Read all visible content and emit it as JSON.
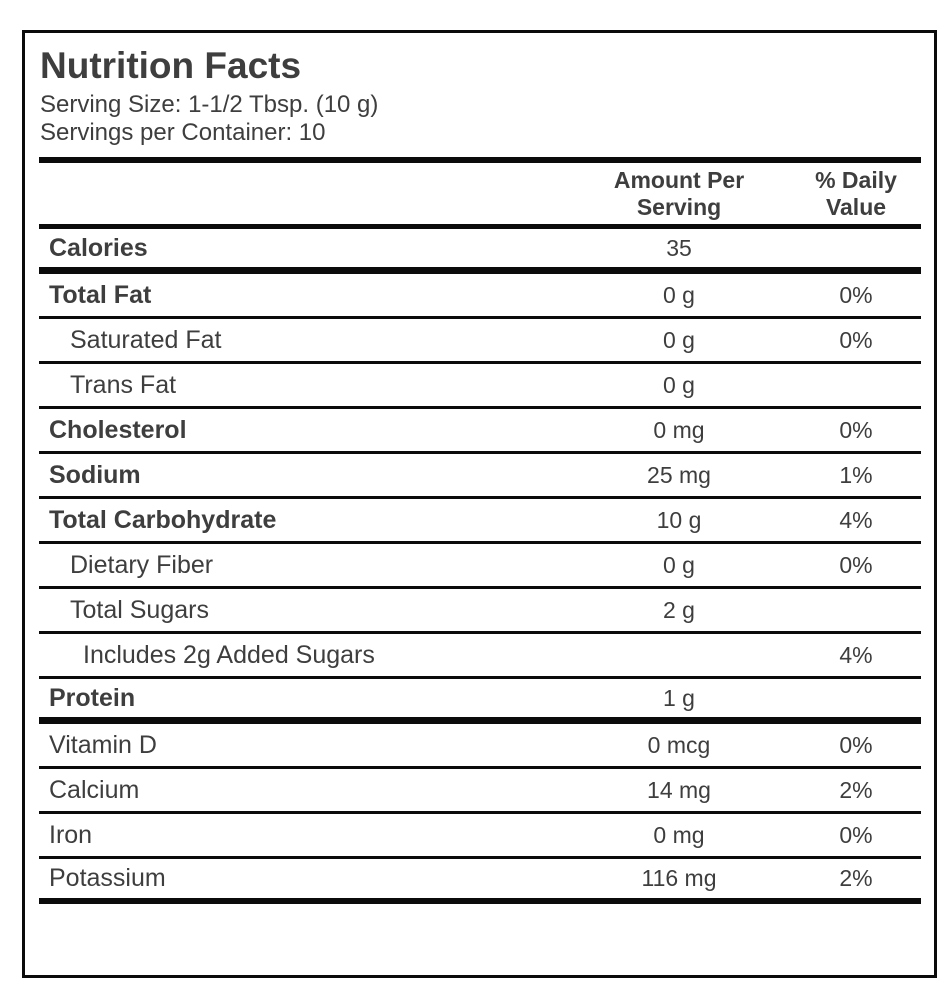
{
  "label": {
    "title": "Nutrition Facts",
    "serving_size": "Serving Size: 1-1/2 Tbsp. (10 g)",
    "servings_per_container": "Servings per Container: 10"
  },
  "table": {
    "amount_header": "Amount Per\nServing",
    "daily_value_header": "% Daily\nValue",
    "rows": [
      {
        "label": "Calories",
        "amount": "35",
        "dv": "",
        "bold": true,
        "indent": 0,
        "sep": "thick"
      },
      {
        "label": "Total Fat",
        "amount": "0 g",
        "dv": "0%",
        "bold": true,
        "indent": 0,
        "sep": "thin"
      },
      {
        "label": "Saturated Fat",
        "amount": "0 g",
        "dv": "0%",
        "bold": false,
        "indent": 1,
        "sep": "thin"
      },
      {
        "label": "Trans Fat",
        "amount": "0 g",
        "dv": "",
        "bold": false,
        "indent": 1,
        "sep": "thin"
      },
      {
        "label": "Cholesterol",
        "amount": "0 mg",
        "dv": "0%",
        "bold": true,
        "indent": 0,
        "sep": "thin"
      },
      {
        "label": "Sodium",
        "amount": "25 mg",
        "dv": "1%",
        "bold": true,
        "indent": 0,
        "sep": "thin"
      },
      {
        "label": "Total Carbohydrate",
        "amount": "10 g",
        "dv": "4%",
        "bold": true,
        "indent": 0,
        "sep": "thin"
      },
      {
        "label": "Dietary Fiber",
        "amount": "0 g",
        "dv": "0%",
        "bold": false,
        "indent": 1,
        "sep": "thin"
      },
      {
        "label": "Total Sugars",
        "amount": "2 g",
        "dv": "",
        "bold": false,
        "indent": 1,
        "sep": "thin"
      },
      {
        "label": "Includes 2g Added Sugars",
        "amount": "",
        "dv": "4%",
        "bold": false,
        "indent": 2,
        "sep": "thin"
      },
      {
        "label": "Protein",
        "amount": "1 g",
        "dv": "",
        "bold": true,
        "indent": 0,
        "sep": "thick"
      },
      {
        "label": "Vitamin D",
        "amount": "0 mcg",
        "dv": "0%",
        "bold": false,
        "indent": 0,
        "sep": "thin"
      },
      {
        "label": "Calcium",
        "amount": "14 mg",
        "dv": "2%",
        "bold": false,
        "indent": 0,
        "sep": "thin"
      },
      {
        "label": "Iron",
        "amount": "0 mg",
        "dv": "0%",
        "bold": false,
        "indent": 0,
        "sep": "thin"
      },
      {
        "label": "Potassium",
        "amount": "116 mg",
        "dv": "2%",
        "bold": false,
        "indent": 0,
        "sep": "bottom"
      }
    ]
  },
  "colors": {
    "text": "#3e3e3e",
    "rule": "#0b0b0b",
    "background": "#ffffff"
  }
}
